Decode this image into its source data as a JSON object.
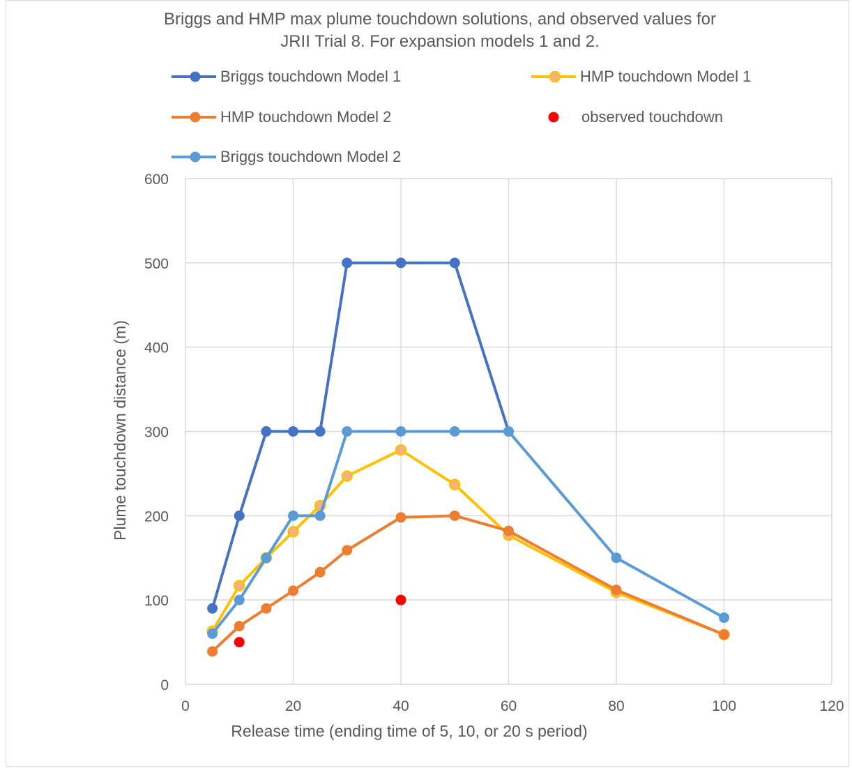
{
  "chart_data": {
    "type": "line",
    "title_lines": [
      "Briggs and HMP max plume touchdown solutions, and observed values for",
      "JRII Trial 8.  For expansion models 1 and 2."
    ],
    "xlabel": "Release time (ending time of 5, 10, or 20 s period)",
    "ylabel": "Plume touchdown distance (m)",
    "xlim": [
      0,
      120
    ],
    "ylim": [
      0,
      600
    ],
    "xticks": [
      0,
      20,
      40,
      60,
      80,
      100,
      120
    ],
    "yticks": [
      0,
      100,
      200,
      300,
      400,
      500,
      600
    ],
    "grid": true,
    "legend_position": "top",
    "series": [
      {
        "name": "Briggs touchdown Model 1",
        "color": "#4472c4",
        "marker_edge": "#4472c4",
        "line": true,
        "points": [
          [
            5,
            90
          ],
          [
            10,
            200
          ],
          [
            15,
            300
          ],
          [
            20,
            300
          ],
          [
            25,
            300
          ],
          [
            30,
            500
          ],
          [
            40,
            500
          ],
          [
            50,
            500
          ],
          [
            60,
            300
          ]
        ]
      },
      {
        "name": "HMP touchdown Model 1",
        "color": "#ffc000",
        "marker_fill": "#f4b183",
        "marker_edge": "#ffc000",
        "line": true,
        "points": [
          [
            5,
            63
          ],
          [
            10,
            117
          ],
          [
            15,
            150
          ],
          [
            20,
            181
          ],
          [
            25,
            212
          ],
          [
            30,
            247
          ],
          [
            40,
            278
          ],
          [
            50,
            237
          ],
          [
            60,
            177
          ],
          [
            80,
            109
          ],
          [
            100,
            59
          ]
        ]
      },
      {
        "name": "HMP touchdown Model 2",
        "color": "#ed7d31",
        "marker_edge": "#ed7d31",
        "line": true,
        "points": [
          [
            5,
            39
          ],
          [
            10,
            69
          ],
          [
            15,
            90
          ],
          [
            20,
            111
          ],
          [
            25,
            133
          ],
          [
            30,
            159
          ],
          [
            40,
            198
          ],
          [
            50,
            200
          ],
          [
            60,
            182
          ],
          [
            80,
            112
          ],
          [
            100,
            59
          ]
        ]
      },
      {
        "name": "observed touchdown",
        "color": "#ff0000",
        "marker_edge": "#ff0000",
        "line": false,
        "points": [
          [
            10,
            50
          ],
          [
            40,
            100
          ]
        ]
      },
      {
        "name": "Briggs touchdown Model 2",
        "color": "#5b9bd5",
        "marker_edge": "#5b9bd5",
        "line": true,
        "points": [
          [
            5,
            60
          ],
          [
            10,
            100
          ],
          [
            15,
            150
          ],
          [
            20,
            200
          ],
          [
            25,
            200
          ],
          [
            30,
            300
          ],
          [
            40,
            300
          ],
          [
            50,
            300
          ],
          [
            60,
            300
          ],
          [
            80,
            150
          ],
          [
            100,
            79
          ]
        ]
      }
    ]
  }
}
